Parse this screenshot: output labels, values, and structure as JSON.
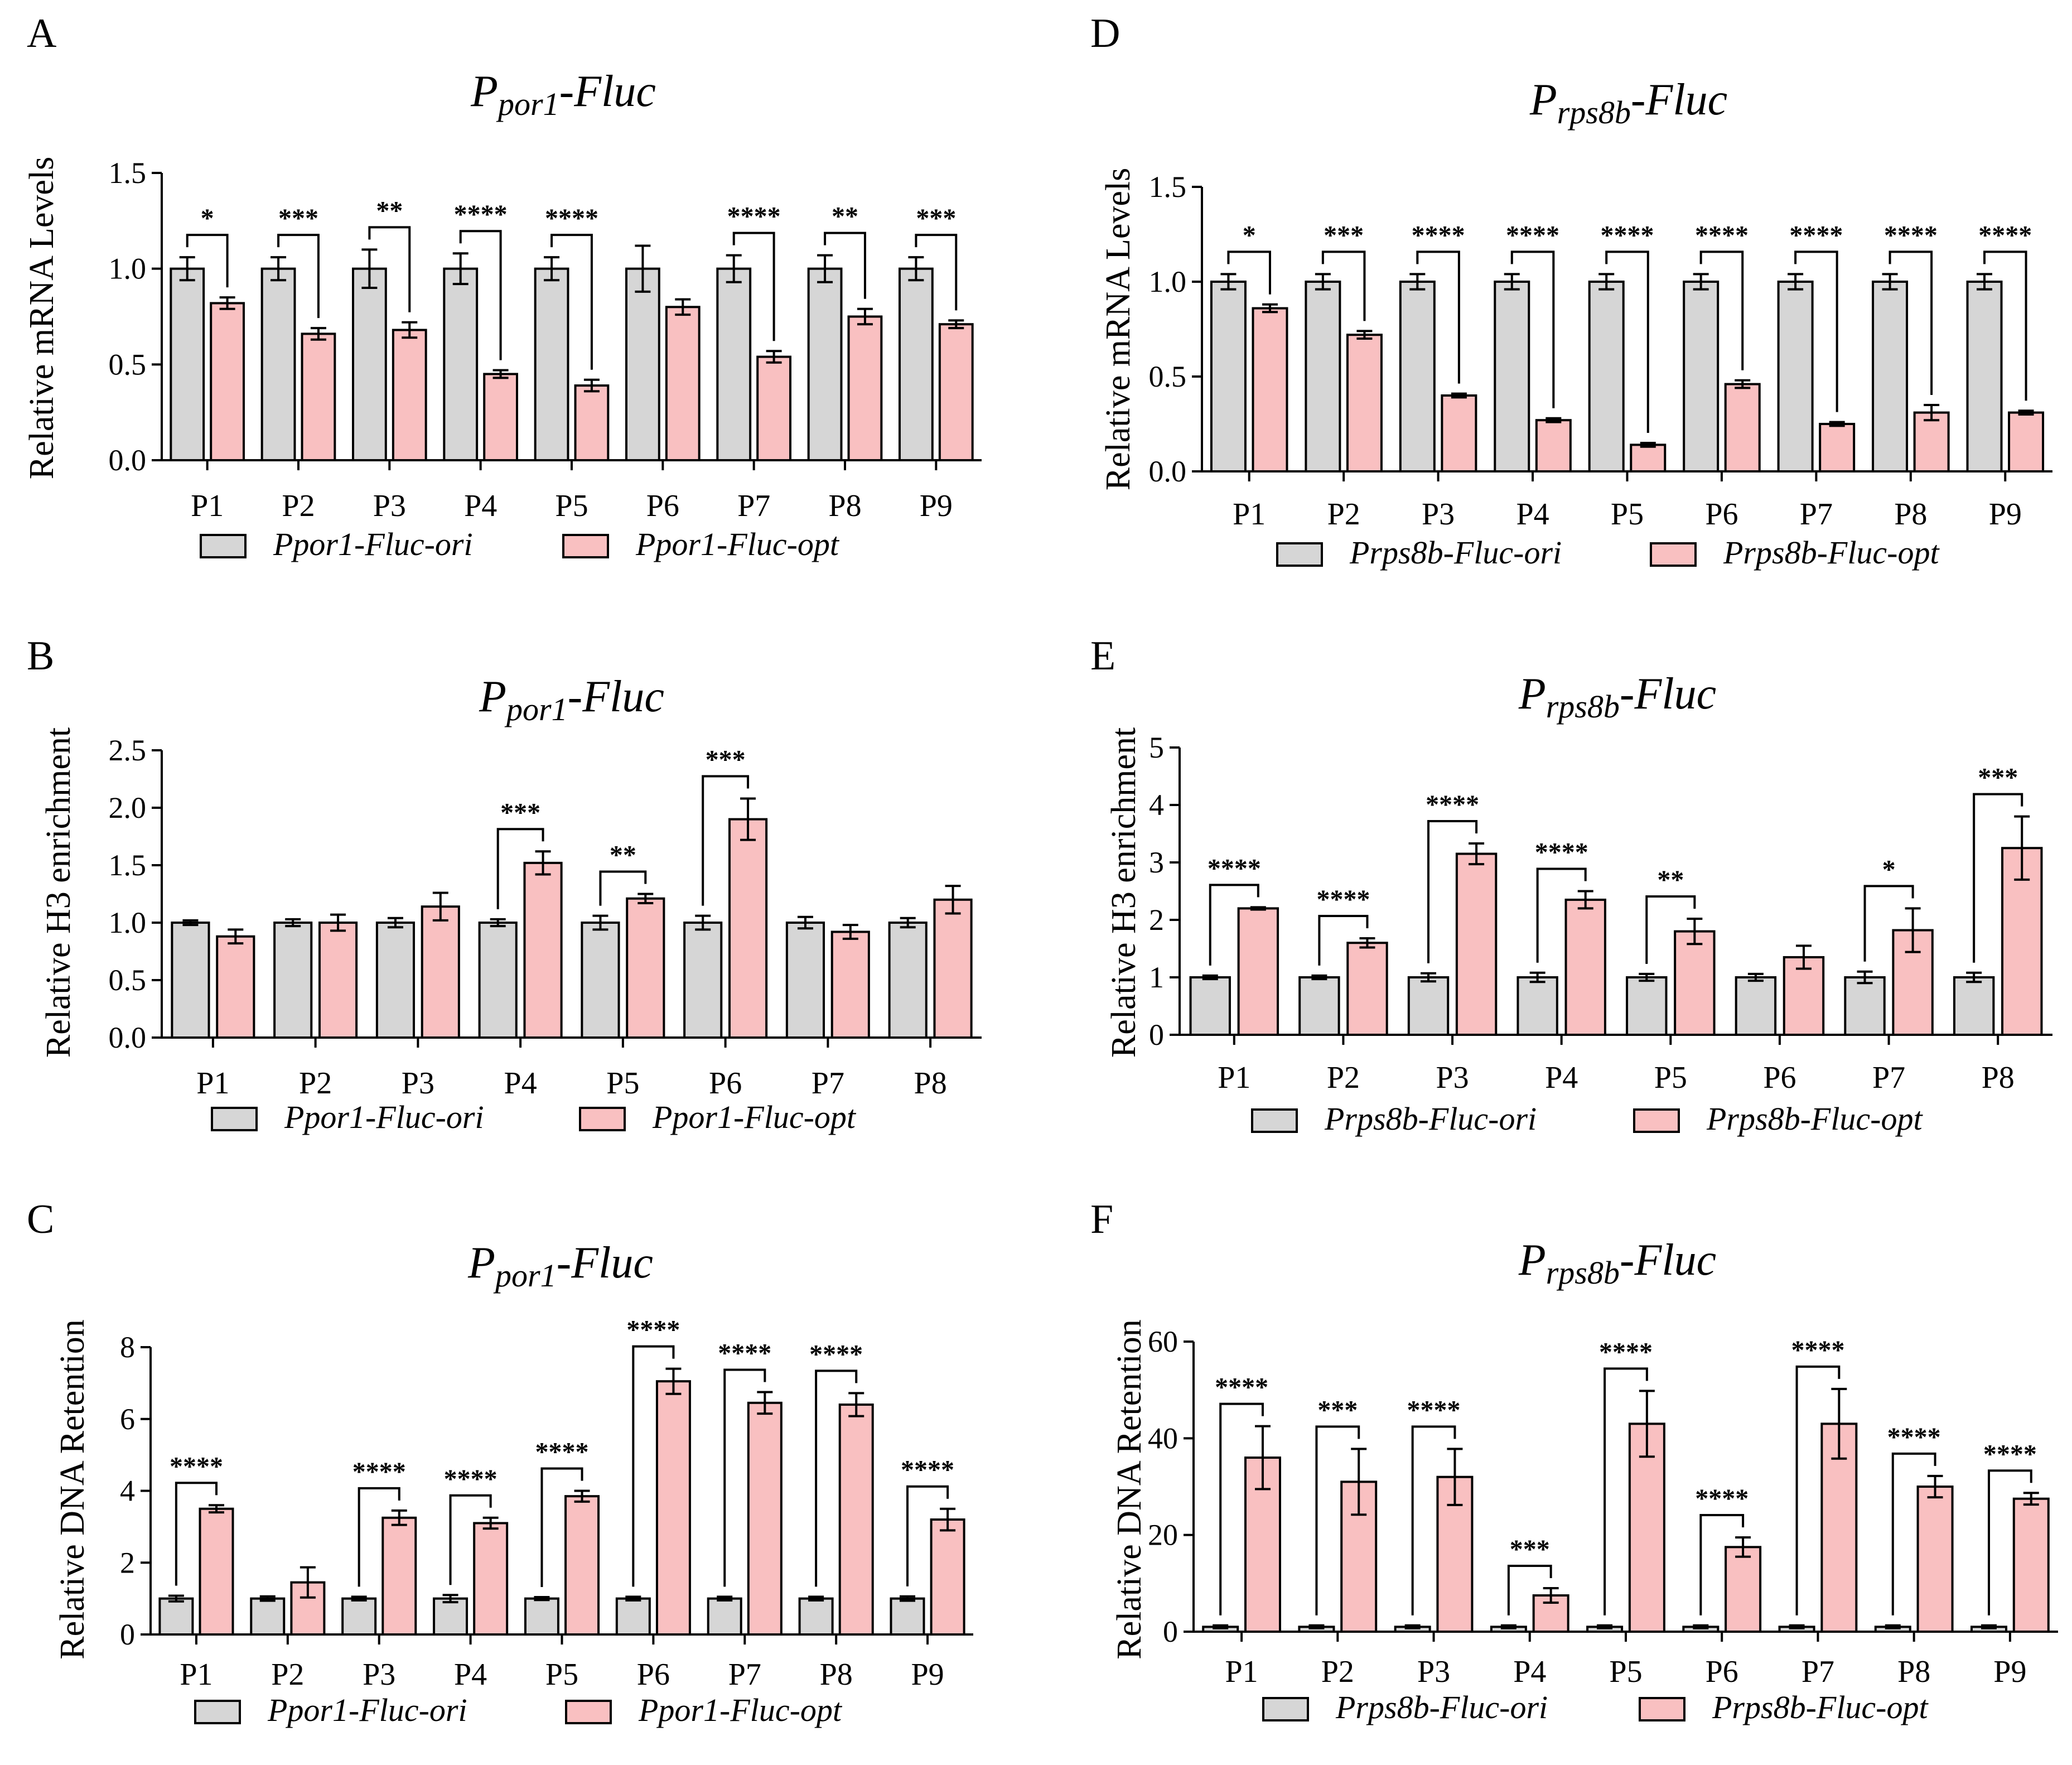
{
  "figure": {
    "background": "#ffffff",
    "ori_color": "#d6d6d6",
    "opt_color": "#f9c0c1",
    "edge_color": "#000000"
  },
  "chart_data": [
    {
      "id": "A",
      "letter": "A",
      "type": "bar",
      "title_main": "P",
      "title_sub": "por1",
      "title_suffix": "-Fluc",
      "ylabel": "Relative mRNA Levels",
      "ylim": [
        0,
        1.5
      ],
      "yticks": [
        0,
        0.5,
        1.0,
        1.5
      ],
      "ytick_labels": [
        "0.0",
        "0.5",
        "1.0",
        "1.5"
      ],
      "categories": [
        "P1",
        "P2",
        "P3",
        "P4",
        "P5",
        "P6",
        "P7",
        "P8",
        "P9"
      ],
      "series": [
        {
          "name": "Ppor1-Fluc-ori",
          "values": [
            1.0,
            1.0,
            1.0,
            1.0,
            1.0,
            1.0,
            1.0,
            1.0,
            1.0
          ],
          "errors": [
            0.06,
            0.06,
            0.1,
            0.08,
            0.06,
            0.12,
            0.07,
            0.07,
            0.06
          ]
        },
        {
          "name": "Ppor1-Fluc-opt",
          "values": [
            0.82,
            0.66,
            0.68,
            0.45,
            0.39,
            0.8,
            0.54,
            0.75,
            0.71
          ],
          "errors": [
            0.03,
            0.03,
            0.04,
            0.02,
            0.03,
            0.04,
            0.03,
            0.04,
            0.02
          ]
        }
      ],
      "significance": [
        "*",
        "***",
        "**",
        "****",
        "****",
        "",
        "****",
        "**",
        "***"
      ],
      "sig_bracket": "tall",
      "legend": [
        "Ppor1-Fluc-ori",
        "Ppor1-Fluc-opt"
      ]
    },
    {
      "id": "B",
      "letter": "B",
      "type": "bar",
      "title_main": "P",
      "title_sub": "por1",
      "title_suffix": "-Fluc",
      "ylabel": "Relative H3 enrichment",
      "ylim": [
        0,
        2.5
      ],
      "yticks": [
        0,
        0.5,
        1.0,
        1.5,
        2.0,
        2.5
      ],
      "ytick_labels": [
        "0.0",
        "0.5",
        "1.0",
        "1.5",
        "2.0",
        "2.5"
      ],
      "categories": [
        "P1",
        "P2",
        "P3",
        "P4",
        "P5",
        "P6",
        "P7",
        "P8"
      ],
      "series": [
        {
          "name": "Ppor1-Fluc-ori",
          "values": [
            1.0,
            1.0,
            1.0,
            1.0,
            1.0,
            1.0,
            1.0,
            1.0
          ],
          "errors": [
            0.02,
            0.03,
            0.04,
            0.03,
            0.06,
            0.06,
            0.05,
            0.04
          ]
        },
        {
          "name": "Ppor1-Fluc-opt",
          "values": [
            0.88,
            1.0,
            1.14,
            1.52,
            1.21,
            1.9,
            0.92,
            1.2
          ],
          "errors": [
            0.06,
            0.07,
            0.12,
            0.1,
            0.04,
            0.18,
            0.06,
            0.12
          ]
        }
      ],
      "significance": [
        "",
        "",
        "",
        "***",
        "**",
        "***",
        "",
        ""
      ],
      "sig_bracket": "tall",
      "legend": [
        "Ppor1-Fluc-ori",
        "Ppor1-Fluc-opt"
      ]
    },
    {
      "id": "C",
      "letter": "C",
      "type": "bar",
      "title_main": "P",
      "title_sub": "por1",
      "title_suffix": "-Fluc",
      "ylabel": "Relative DNA Retention",
      "ylim": [
        0,
        8
      ],
      "yticks": [
        0,
        2,
        4,
        6,
        8
      ],
      "ytick_labels": [
        "0",
        "2",
        "4",
        "6",
        "8"
      ],
      "categories": [
        "P1",
        "P2",
        "P3",
        "P4",
        "P5",
        "P6",
        "P7",
        "P8",
        "P9"
      ],
      "series": [
        {
          "name": "Ppor1-Fluc-ori",
          "values": [
            1.0,
            1.0,
            1.0,
            1.0,
            1.0,
            1.0,
            1.0,
            1.0,
            1.0
          ],
          "errors": [
            0.08,
            0.06,
            0.05,
            0.1,
            0.04,
            0.05,
            0.05,
            0.05,
            0.06
          ]
        },
        {
          "name": "Ppor1-Fluc-opt",
          "values": [
            3.5,
            1.45,
            3.25,
            3.1,
            3.85,
            7.05,
            6.45,
            6.4,
            3.2
          ],
          "errors": [
            0.1,
            0.42,
            0.2,
            0.15,
            0.15,
            0.35,
            0.3,
            0.32,
            0.3
          ]
        }
      ],
      "significance": [
        "****",
        "",
        "****",
        "****",
        "****",
        "****",
        "****",
        "****",
        "****"
      ],
      "sig_bracket": "tall",
      "legend": [
        "Ppor1-Fluc-ori",
        "Ppor1-Fluc-opt"
      ]
    },
    {
      "id": "D",
      "letter": "D",
      "type": "bar",
      "title_main": "P",
      "title_sub": "rps8b",
      "title_suffix": "-Fluc",
      "ylabel": "Relative mRNA Levels",
      "ylim": [
        0,
        1.5
      ],
      "yticks": [
        0,
        0.5,
        1.0,
        1.5
      ],
      "ytick_labels": [
        "0.0",
        "0.5",
        "1.0",
        "1.5"
      ],
      "categories": [
        "P1",
        "P2",
        "P3",
        "P4",
        "P5",
        "P6",
        "P7",
        "P8",
        "P9"
      ],
      "series": [
        {
          "name": "Prps8b-Fluc-ori",
          "values": [
            1.0,
            1.0,
            1.0,
            1.0,
            1.0,
            1.0,
            1.0,
            1.0,
            1.0
          ],
          "errors": [
            0.04,
            0.04,
            0.04,
            0.04,
            0.04,
            0.04,
            0.04,
            0.04,
            0.04
          ]
        },
        {
          "name": "Prps8b-Fluc-opt",
          "values": [
            0.86,
            0.72,
            0.4,
            0.27,
            0.14,
            0.46,
            0.25,
            0.31,
            0.31
          ],
          "errors": [
            0.02,
            0.02,
            0.01,
            0.01,
            0.01,
            0.02,
            0.01,
            0.04,
            0.01
          ]
        }
      ],
      "significance": [
        "*",
        "***",
        "****",
        "****",
        "****",
        "****",
        "****",
        "****",
        "****"
      ],
      "sig_bracket": "tall",
      "legend": [
        "Prps8b-Fluc-ori",
        "Prps8b-Fluc-opt"
      ]
    },
    {
      "id": "E",
      "letter": "E",
      "type": "bar",
      "title_main": "P",
      "title_sub": "rps8b",
      "title_suffix": "-Fluc",
      "ylabel": "Relative H3 enrichment",
      "ylim": [
        0,
        5
      ],
      "yticks": [
        0,
        1,
        2,
        3,
        4,
        5
      ],
      "ytick_labels": [
        "0",
        "1",
        "2",
        "3",
        "4",
        "5"
      ],
      "categories": [
        "P1",
        "P2",
        "P3",
        "P4",
        "P5",
        "P6",
        "P7",
        "P8"
      ],
      "series": [
        {
          "name": "Prps8b-Fluc-ori",
          "values": [
            1.0,
            1.0,
            1.0,
            1.0,
            1.0,
            1.0,
            1.0,
            1.0
          ],
          "errors": [
            0.03,
            0.03,
            0.07,
            0.08,
            0.06,
            0.06,
            0.1,
            0.08
          ]
        },
        {
          "name": "Prps8b-Fluc-opt",
          "values": [
            2.2,
            1.6,
            3.15,
            2.35,
            1.8,
            1.35,
            1.82,
            3.25
          ],
          "errors": [
            0.02,
            0.08,
            0.18,
            0.15,
            0.22,
            0.2,
            0.38,
            0.55
          ]
        }
      ],
      "significance": [
        "****",
        "****",
        "****",
        "****",
        "**",
        "",
        "*",
        "***"
      ],
      "sig_bracket": "tall",
      "legend": [
        "Prps8b-Fluc-ori",
        "Prps8b-Fluc-opt"
      ]
    },
    {
      "id": "F",
      "letter": "F",
      "type": "bar",
      "title_main": "P",
      "title_sub": "rps8b",
      "title_suffix": "-Fluc",
      "ylabel": "Relative DNA Retention",
      "ylim": [
        0,
        60
      ],
      "yticks": [
        0,
        20,
        40,
        60
      ],
      "ytick_labels": [
        "0",
        "20",
        "40",
        "60"
      ],
      "categories": [
        "P1",
        "P2",
        "P3",
        "P4",
        "P5",
        "P6",
        "P7",
        "P8",
        "P9"
      ],
      "series": [
        {
          "name": "Prps8b-Fluc-ori",
          "values": [
            1.0,
            1.0,
            1.0,
            1.0,
            1.0,
            1.0,
            1.0,
            1.0,
            1.0
          ],
          "errors": [
            0.3,
            0.3,
            0.3,
            0.3,
            0.3,
            0.3,
            0.3,
            0.3,
            0.3
          ]
        },
        {
          "name": "Prps8b-Fluc-opt",
          "values": [
            36,
            31,
            32,
            7.5,
            43,
            17.5,
            43,
            30,
            27.5
          ],
          "errors": [
            6.5,
            6.8,
            5.8,
            1.5,
            6.8,
            2.0,
            7.2,
            2.2,
            1.2
          ]
        }
      ],
      "significance": [
        "****",
        "***",
        "****",
        "***",
        "****",
        "****",
        "****",
        "****",
        "****"
      ],
      "sig_bracket": "tall",
      "legend": [
        "Prps8b-Fluc-ori",
        "Prps8b-Fluc-opt"
      ]
    }
  ]
}
